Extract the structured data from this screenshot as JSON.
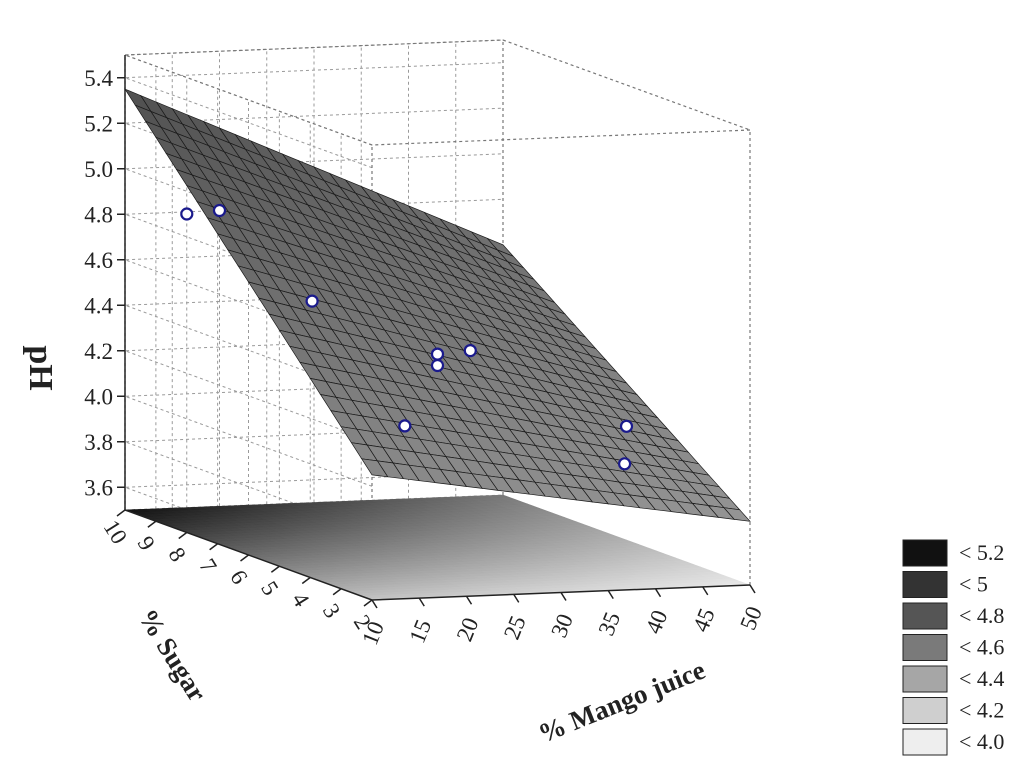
{
  "chart_data": {
    "type": "surface3d",
    "title": "",
    "xlabel": "% Mango juice",
    "ylabel": "% Sugar",
    "zlabel": "pH",
    "x_ticks": [
      "10",
      "15",
      "20",
      "25",
      "30",
      "35",
      "40",
      "45",
      "50"
    ],
    "y_ticks": [
      "2",
      "3",
      "4",
      "5",
      "6",
      "7",
      "8",
      "9",
      "10"
    ],
    "z_ticks": [
      "3.6",
      "3.8",
      "4.0",
      "4.2",
      "4.4",
      "4.6",
      "4.8",
      "5.0",
      "5.2",
      "5.4"
    ],
    "xlim": [
      10,
      50
    ],
    "ylim": [
      2,
      10
    ],
    "zlim": [
      3.5,
      5.5
    ],
    "surface_corners": [
      {
        "mango_juice": 10,
        "sugar": 10,
        "pH": 5.35
      },
      {
        "mango_juice": 50,
        "sugar": 10,
        "pH": 4.6
      },
      {
        "mango_juice": 10,
        "sugar": 2,
        "pH": 4.05
      },
      {
        "mango_juice": 50,
        "sugar": 2,
        "pH": 3.78
      }
    ],
    "observed_points": [
      {
        "mango_juice": 10,
        "sugar": 8,
        "pH": 4.9
      },
      {
        "mango_juice": 20,
        "sugar": 10,
        "pH": 4.8
      },
      {
        "mango_juice": 20,
        "sugar": 7,
        "pH": 4.55
      },
      {
        "mango_juice": 30,
        "sugar": 6,
        "pH": 4.35
      },
      {
        "mango_juice": 30,
        "sugar": 6,
        "pH": 4.3
      },
      {
        "mango_juice": 40,
        "sugar": 8,
        "pH": 4.25
      },
      {
        "mango_juice": 20,
        "sugar": 4,
        "pH": 4.15
      },
      {
        "mango_juice": 40,
        "sugar": 3,
        "pH": 4.0
      },
      {
        "mango_juice": 50,
        "sugar": 6,
        "pH": 4.0
      }
    ],
    "legend": {
      "position": "bottom-right",
      "items": [
        {
          "label": "< 5.2",
          "color": "#111111"
        },
        {
          "label": "< 5",
          "color": "#333333"
        },
        {
          "label": "< 4.8",
          "color": "#555555"
        },
        {
          "label": "< 4.6",
          "color": "#7a7a7a"
        },
        {
          "label": "< 4.4",
          "color": "#a6a6a6"
        },
        {
          "label": "< 4.2",
          "color": "#cfcfcf"
        },
        {
          "label": "< 4.0",
          "color": "#eeeeee"
        }
      ]
    },
    "grid": true
  }
}
